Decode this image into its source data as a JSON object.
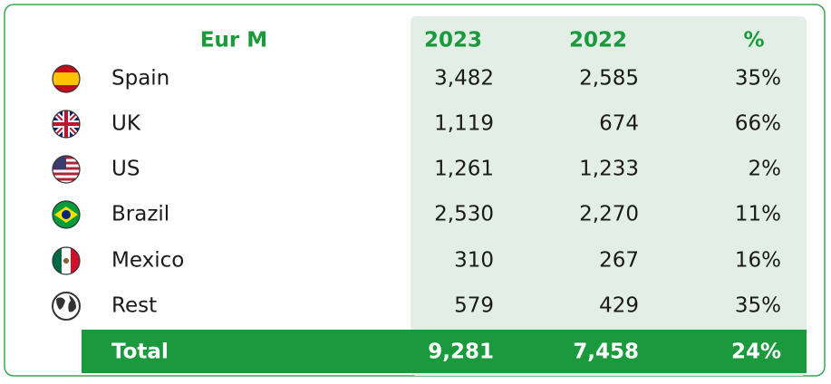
{
  "table": {
    "header": [
      "Eur M",
      "2023",
      "2022",
      "%"
    ],
    "rows": [
      [
        "Spain",
        "3,482",
        "2,585",
        "35%"
      ],
      [
        "UK",
        "1,119",
        "674",
        "66%"
      ],
      [
        "US",
        "1,261",
        "1,233",
        "2%"
      ],
      [
        "Brazil",
        "2,530",
        "2,270",
        "11%"
      ],
      [
        "Mexico",
        "310",
        "267",
        "16%"
      ],
      [
        "Rest",
        "579",
        "429",
        "35%"
      ]
    ],
    "total": [
      "Total",
      "9,281",
      "7,458",
      "24%"
    ]
  }
}
